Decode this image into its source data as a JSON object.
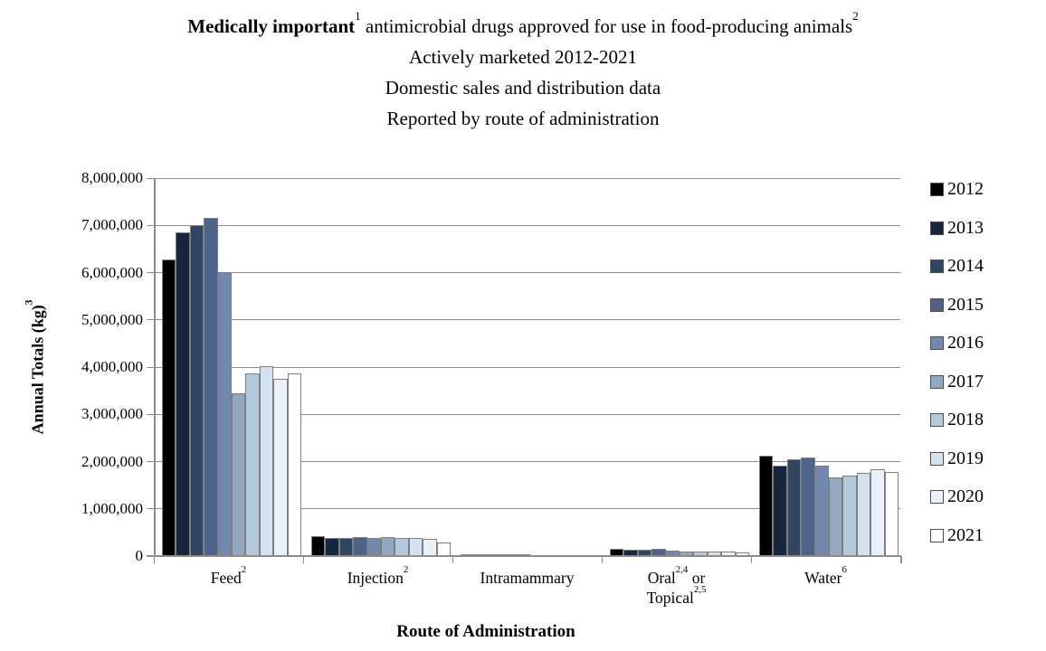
{
  "title": {
    "line1_segments": [
      {
        "t": "Medically important",
        "bold": true
      },
      {
        "sup": "1"
      },
      {
        "t": " antimicrobial drugs approved for use in food-producing animals"
      },
      {
        "sup": "2"
      }
    ],
    "line2": "Actively marketed 2012-2021",
    "line3": "Domestic sales and distribution data",
    "line4": "Reported by route of administration"
  },
  "chart_data": {
    "type": "bar",
    "title": "Medically important antimicrobial drugs approved for use in food-producing animals, Actively marketed 2012-2021, Domestic sales and distribution data, Reported by route of administration",
    "xlabel": "Route of Administration",
    "ylabel": "Annual Totals (kg)",
    "ylabel_sup": "3",
    "ylim": [
      0,
      8000000
    ],
    "y_tick_step": 1000000,
    "y_tick_labels": [
      "0",
      "1,000,000",
      "2,000,000",
      "3,000,000",
      "4,000,000",
      "5,000,000",
      "6,000,000",
      "7,000,000",
      "8,000,000"
    ],
    "grid": true,
    "legend_position": "right",
    "categories": [
      {
        "key": "feed",
        "plain": "Feed2",
        "lines": [
          [
            {
              "t": "Feed"
            },
            {
              "sup": "2"
            }
          ]
        ]
      },
      {
        "key": "injection",
        "plain": "Injection2",
        "lines": [
          [
            {
              "t": "Injection"
            },
            {
              "sup": "2"
            }
          ]
        ]
      },
      {
        "key": "intramammary",
        "plain": "Intramammary",
        "lines": [
          [
            {
              "t": "Intramammary"
            }
          ]
        ]
      },
      {
        "key": "oral-topical",
        "plain": "Oral2,4 or Topical2,5",
        "lines": [
          [
            {
              "t": "Oral"
            },
            {
              "sup": "2,4"
            },
            {
              "t": " or"
            }
          ],
          [
            {
              "t": "Topical"
            },
            {
              "sup": "2,5"
            }
          ]
        ]
      },
      {
        "key": "water",
        "plain": "Water6",
        "lines": [
          [
            {
              "t": "Water"
            },
            {
              "sup": "6"
            }
          ]
        ]
      }
    ],
    "series": [
      {
        "name": "2012",
        "color": "#000000",
        "values": [
          6270000,
          420000,
          40000,
          150000,
          2120000
        ]
      },
      {
        "name": "2013",
        "color": "#17253E",
        "values": [
          6850000,
          390000,
          45000,
          140000,
          1910000
        ]
      },
      {
        "name": "2014",
        "color": "#2F4564",
        "values": [
          7000000,
          390000,
          40000,
          140000,
          2040000
        ]
      },
      {
        "name": "2015",
        "color": "#4E638A",
        "values": [
          7160000,
          400000,
          35000,
          145000,
          2080000
        ]
      },
      {
        "name": "2016",
        "color": "#7288AE",
        "values": [
          6000000,
          380000,
          30000,
          120000,
          1920000
        ]
      },
      {
        "name": "2017",
        "color": "#92A8C1",
        "values": [
          3440000,
          395000,
          20000,
          100000,
          1670000
        ]
      },
      {
        "name": "2018",
        "color": "#B5C9DC",
        "values": [
          3870000,
          390000,
          20000,
          105000,
          1710000
        ]
      },
      {
        "name": "2019",
        "color": "#D3E2EE",
        "values": [
          4020000,
          385000,
          18000,
          95000,
          1770000
        ]
      },
      {
        "name": "2020",
        "color": "#E9F0F7",
        "values": [
          3760000,
          370000,
          15000,
          100000,
          1830000
        ]
      },
      {
        "name": "2021",
        "color": "#FFFFFF",
        "values": [
          3860000,
          290000,
          15000,
          70000,
          1780000
        ]
      }
    ]
  }
}
